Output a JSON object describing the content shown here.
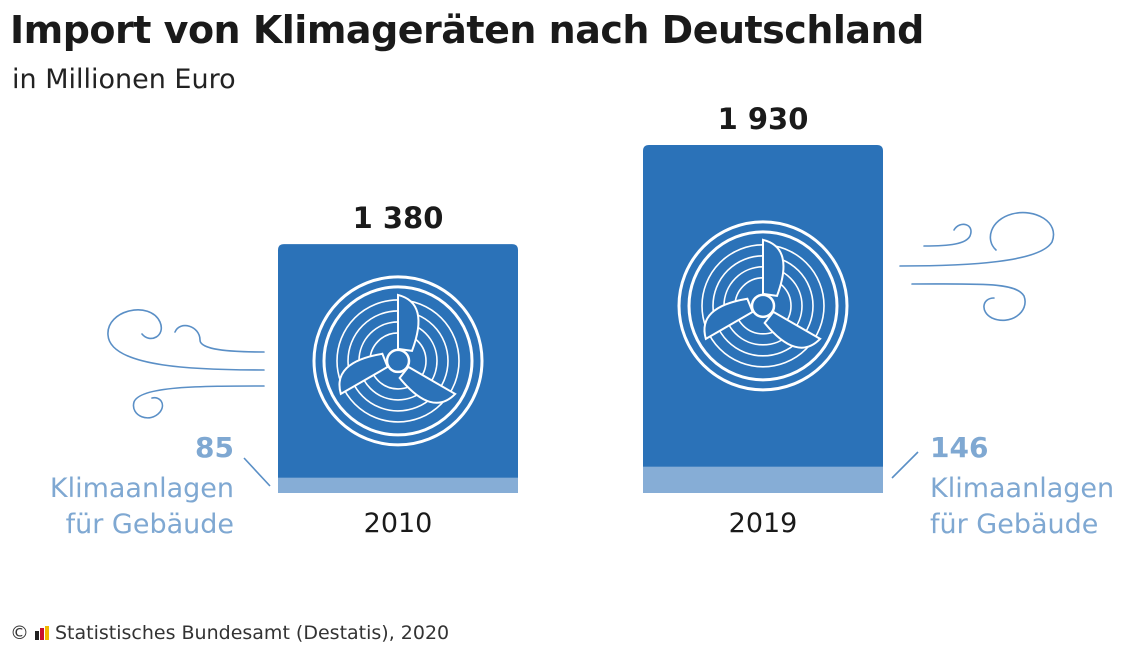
{
  "title": "Import von Klimageräten nach Deutschland",
  "subtitle": "in Millionen Euro",
  "chart_data": {
    "type": "bar",
    "categories": [
      "2010",
      "2019"
    ],
    "series": [
      {
        "name": "",
        "values": [
          1380,
          1930
        ]
      },
      {
        "name": "Klimaanlagen für Gebäude",
        "values": [
          85,
          146
        ]
      }
    ],
    "value_labels": [
      "1 380",
      "1 930"
    ],
    "sub_value_labels": [
      "85",
      "146"
    ],
    "sub_label_line1": "Klimaanlagen",
    "sub_label_line2": "für Gebäude",
    "colors": {
      "main": "#2b72b8",
      "sub": "#86add6",
      "sub_text": "#7fa8d2",
      "line": "#5a8fc6"
    }
  },
  "footer": {
    "copyright": "©",
    "source": "Statistisches Bundesamt (Destatis), 2020"
  }
}
